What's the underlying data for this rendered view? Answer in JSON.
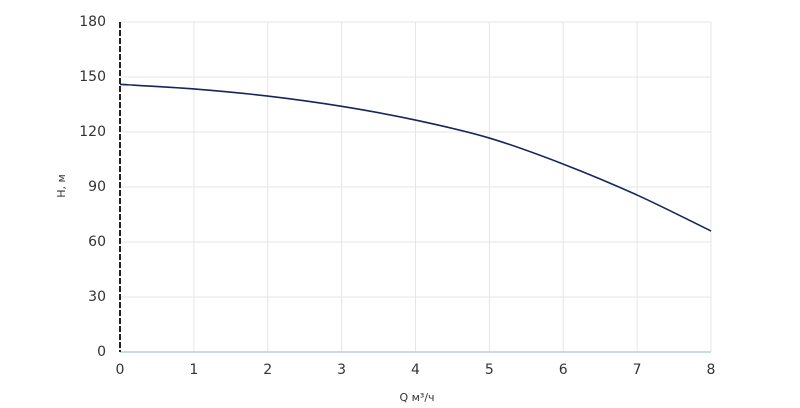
{
  "chart_data": {
    "type": "line",
    "x_label": "Q м³/ч",
    "y_label": "H, м",
    "x": [
      0,
      1,
      2,
      3,
      4,
      5,
      6,
      7,
      8
    ],
    "series": [
      {
        "color": "#14265a",
        "values": [
          146,
          143.5,
          139.6,
          134,
          126.5,
          116.7,
          102.5,
          85.6,
          66
        ]
      }
    ],
    "xlim": [
      0,
      8
    ],
    "xticks": [
      0,
      1,
      2,
      3,
      4,
      5,
      6,
      7,
      8
    ],
    "ylim": [
      0,
      180
    ],
    "yticks": [
      0,
      30,
      60,
      90,
      120,
      150,
      180
    ],
    "grid": true
  }
}
